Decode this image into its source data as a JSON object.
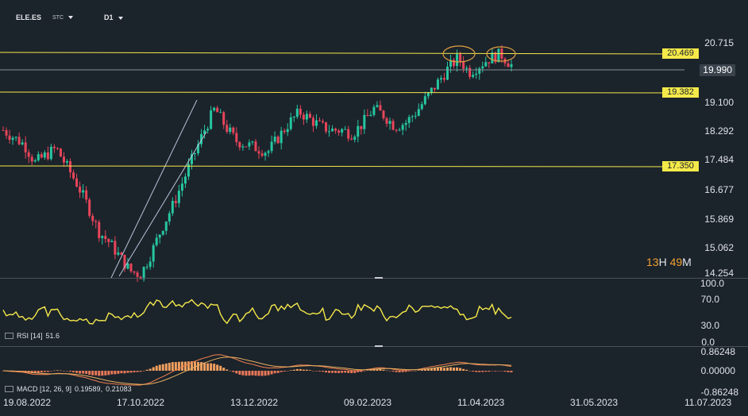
{
  "toolbar": {
    "symbol": "ELE.ES",
    "type": "STC",
    "timeframe": "D1"
  },
  "price_axis": {
    "labels": [
      "20.715",
      "19.990",
      "19.100",
      "18.292",
      "17.484",
      "16.677",
      "15.869",
      "15.062",
      "14.254"
    ]
  },
  "levels": {
    "top": "20.469",
    "mid": "19.382",
    "low": "17.350",
    "current": "19.990"
  },
  "timer": {
    "hours": "13",
    "h_unit": "H",
    "minutes": "49",
    "m_unit": "M"
  },
  "rsi": {
    "label": "RSI [14]",
    "value": "51.6",
    "axis": [
      "100.0",
      "70.0",
      "30.0",
      "0.0"
    ]
  },
  "macd": {
    "label": "MACD [12, 26, 9]",
    "value1": "0.19589,",
    "value2": "0.21083",
    "axis": [
      "0.86248",
      "0.00000",
      "-0.86248"
    ]
  },
  "dates": [
    "19.08.2022",
    "17.10.2022",
    "13.12.2022",
    "09.02.2023",
    "11.04.2023",
    "31.05.2023",
    "11.07.2023"
  ],
  "colors": {
    "background": "#1b232b",
    "bull": "#26c6a0",
    "bear": "#e8455a",
    "level": "#f5e94a",
    "rsi_line": "#f5e94a",
    "macd_hist": "#f0a060",
    "ellipse": "#e0a040"
  },
  "chart_data": {
    "type": "candlestick",
    "x_range": [
      "19.08.2022",
      "11.07.2023"
    ],
    "y_range": [
      14.254,
      20.715
    ],
    "close_series_approx": [
      18.3,
      18.1,
      17.9,
      17.4,
      17.6,
      17.8,
      17.3,
      16.8,
      16.2,
      15.5,
      15.2,
      14.8,
      14.4,
      14.3,
      14.9,
      15.6,
      16.2,
      16.9,
      17.6,
      18.3,
      18.9,
      18.4,
      18.0,
      17.9,
      17.8,
      17.7,
      18.1,
      18.5,
      18.8,
      18.6,
      18.4,
      18.3,
      18.3,
      18.2,
      18.5,
      18.9,
      18.7,
      18.4,
      18.5,
      18.8,
      19.2,
      19.6,
      20.0,
      20.3,
      19.9,
      20.1,
      20.3,
      20.4,
      20.1
    ]
  }
}
